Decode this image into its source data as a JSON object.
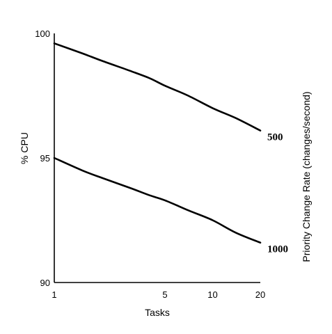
{
  "chart_data": {
    "type": "line",
    "title": "",
    "xlabel": "Tasks",
    "ylabel": "% CPU",
    "y2label": "Priority Change Rate (changes/second)",
    "x_ticks": [
      1,
      5,
      10,
      20
    ],
    "y_ticks": [
      90,
      95,
      100
    ],
    "ylim": [
      90,
      100
    ],
    "xlim": [
      1,
      20
    ],
    "x_scale": "log",
    "grid": false,
    "series": [
      {
        "name": "500",
        "x": [
          1,
          1.5,
          2,
          3,
          4,
          5,
          7,
          10,
          14,
          20
        ],
        "y": [
          99.6,
          99.2,
          98.9,
          98.5,
          98.2,
          97.9,
          97.5,
          97.0,
          96.6,
          96.1
        ]
      },
      {
        "name": "1000",
        "x": [
          1,
          1.5,
          2,
          3,
          4,
          5,
          7,
          10,
          14,
          20
        ],
        "y": [
          95.0,
          94.5,
          94.2,
          93.8,
          93.5,
          93.3,
          92.9,
          92.5,
          92.0,
          91.6
        ]
      }
    ]
  }
}
